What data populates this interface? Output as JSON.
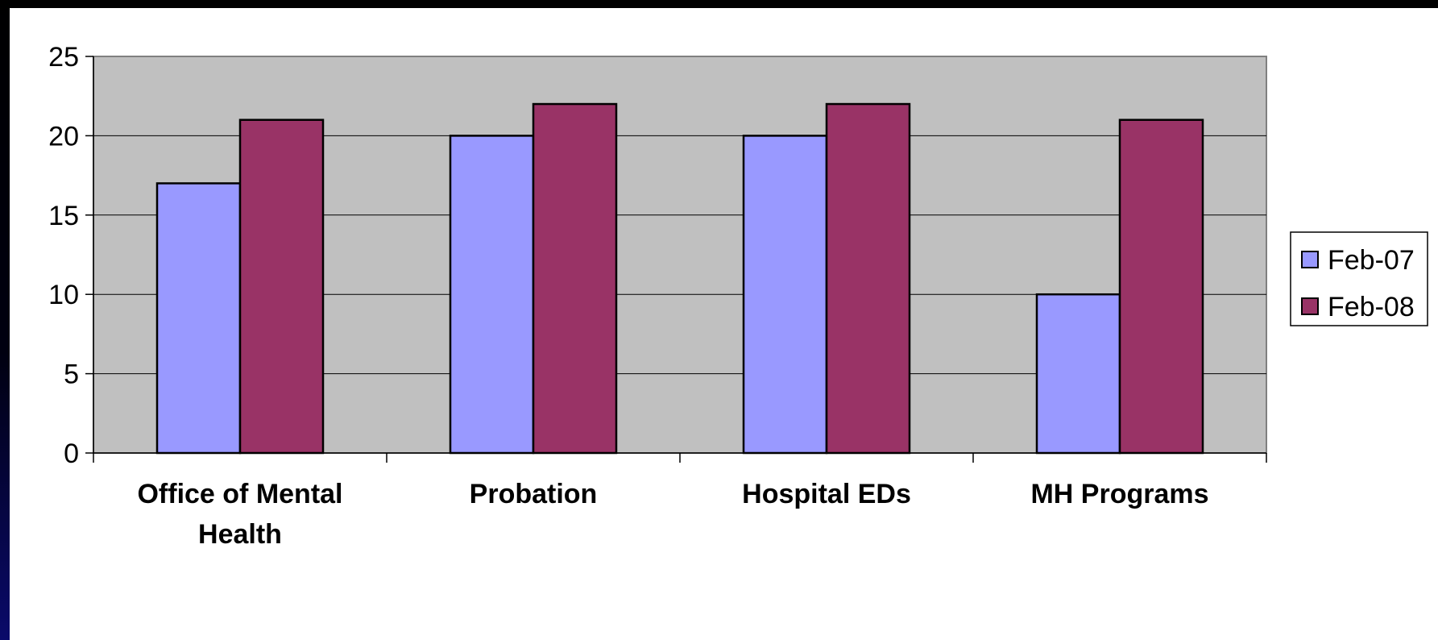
{
  "chart_data": {
    "type": "bar",
    "categories": [
      [
        "Office of Mental",
        "Health"
      ],
      [
        "Probation"
      ],
      [
        "Hospital EDs"
      ],
      [
        "MH Programs"
      ]
    ],
    "series": [
      {
        "name": "Feb-07",
        "color": "#9999ff",
        "values": [
          17,
          20,
          20,
          10
        ]
      },
      {
        "name": "Feb-08",
        "color": "#993366",
        "values": [
          21,
          22,
          22,
          21
        ]
      }
    ],
    "title": "",
    "xlabel": "",
    "ylabel": "",
    "ylim": [
      0,
      25
    ],
    "yticks": [
      "0",
      "5",
      "10",
      "15",
      "20",
      "25"
    ],
    "grid": true,
    "plot_background": "#c0c0c0",
    "legend_position": "right"
  }
}
